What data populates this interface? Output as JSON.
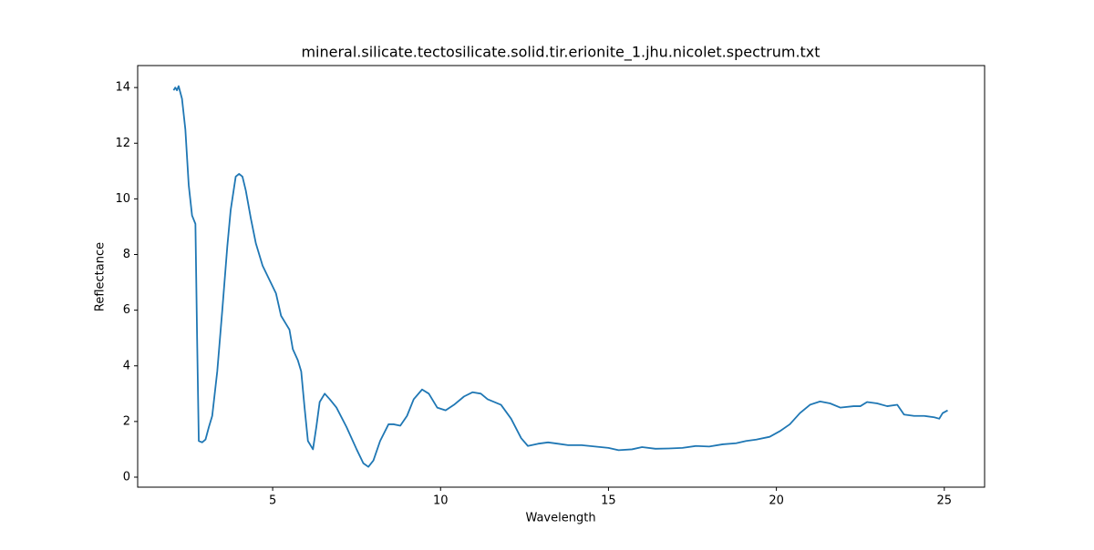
{
  "chart_data": {
    "type": "line",
    "title": "mineral.silicate.tectosilicate.solid.tir.erionite_1.jhu.nicolet.spectrum.txt",
    "xlabel": "Wavelength",
    "ylabel": "Reflectance",
    "xlim": [
      0.98,
      26.2
    ],
    "ylim": [
      -0.36,
      14.79
    ],
    "xticks": [
      5,
      10,
      15,
      20,
      25
    ],
    "yticks": [
      0,
      2,
      4,
      6,
      8,
      10,
      12,
      14
    ],
    "x": [
      2.05,
      2.1,
      2.15,
      2.2,
      2.3,
      2.4,
      2.5,
      2.6,
      2.7,
      2.75,
      2.8,
      2.9,
      3.0,
      3.1,
      3.2,
      3.35,
      3.5,
      3.65,
      3.75,
      3.9,
      4.0,
      4.1,
      4.2,
      4.35,
      4.5,
      4.7,
      4.9,
      5.1,
      5.25,
      5.4,
      5.5,
      5.6,
      5.75,
      5.85,
      5.95,
      6.05,
      6.2,
      6.3,
      6.4,
      6.55,
      6.7,
      6.9,
      7.2,
      7.5,
      7.7,
      7.85,
      8.0,
      8.2,
      8.45,
      8.6,
      8.8,
      9.0,
      9.2,
      9.45,
      9.65,
      9.9,
      10.15,
      10.4,
      10.7,
      10.95,
      11.2,
      11.4,
      11.8,
      12.1,
      12.4,
      12.6,
      12.9,
      13.2,
      13.5,
      13.8,
      14.2,
      14.6,
      15.0,
      15.3,
      15.7,
      16.0,
      16.4,
      16.8,
      17.2,
      17.6,
      18.0,
      18.4,
      18.8,
      19.1,
      19.4,
      19.8,
      20.1,
      20.4,
      20.7,
      21.0,
      21.3,
      21.6,
      21.9,
      22.3,
      22.5,
      22.7,
      23.0,
      23.3,
      23.6,
      23.8,
      24.1,
      24.4,
      24.7,
      24.85,
      24.95,
      25.1
    ],
    "series": [
      {
        "color": "#1f77b4",
        "values": [
          13.9,
          14.0,
          13.9,
          14.05,
          13.6,
          12.5,
          10.5,
          9.4,
          9.1,
          5,
          1.3,
          1.25,
          1.35,
          1.8,
          2.2,
          3.8,
          6.0,
          8.3,
          9.6,
          10.8,
          10.9,
          10.8,
          10.3,
          9.3,
          8.4,
          7.6,
          7.1,
          6.6,
          5.8,
          5.5,
          5.3,
          4.6,
          4.2,
          3.8,
          2.5,
          1.3,
          1.0,
          1.8,
          2.7,
          3.0,
          2.8,
          2.5,
          1.8,
          1.0,
          0.5,
          0.37,
          0.6,
          1.3,
          1.9,
          1.9,
          1.85,
          2.2,
          2.8,
          3.15,
          3.0,
          2.5,
          2.4,
          2.6,
          2.9,
          3.05,
          3.0,
          2.8,
          2.6,
          2.1,
          1.4,
          1.12,
          1.2,
          1.25,
          1.2,
          1.15,
          1.15,
          1.1,
          1.05,
          0.97,
          1.0,
          1.08,
          1.02,
          1.03,
          1.05,
          1.12,
          1.1,
          1.18,
          1.22,
          1.3,
          1.35,
          1.45,
          1.65,
          1.9,
          2.3,
          2.6,
          2.72,
          2.65,
          2.5,
          2.55,
          2.55,
          2.7,
          2.65,
          2.55,
          2.6,
          2.25,
          2.2,
          2.2,
          2.15,
          2.1,
          2.3,
          2.4
        ]
      }
    ]
  }
}
